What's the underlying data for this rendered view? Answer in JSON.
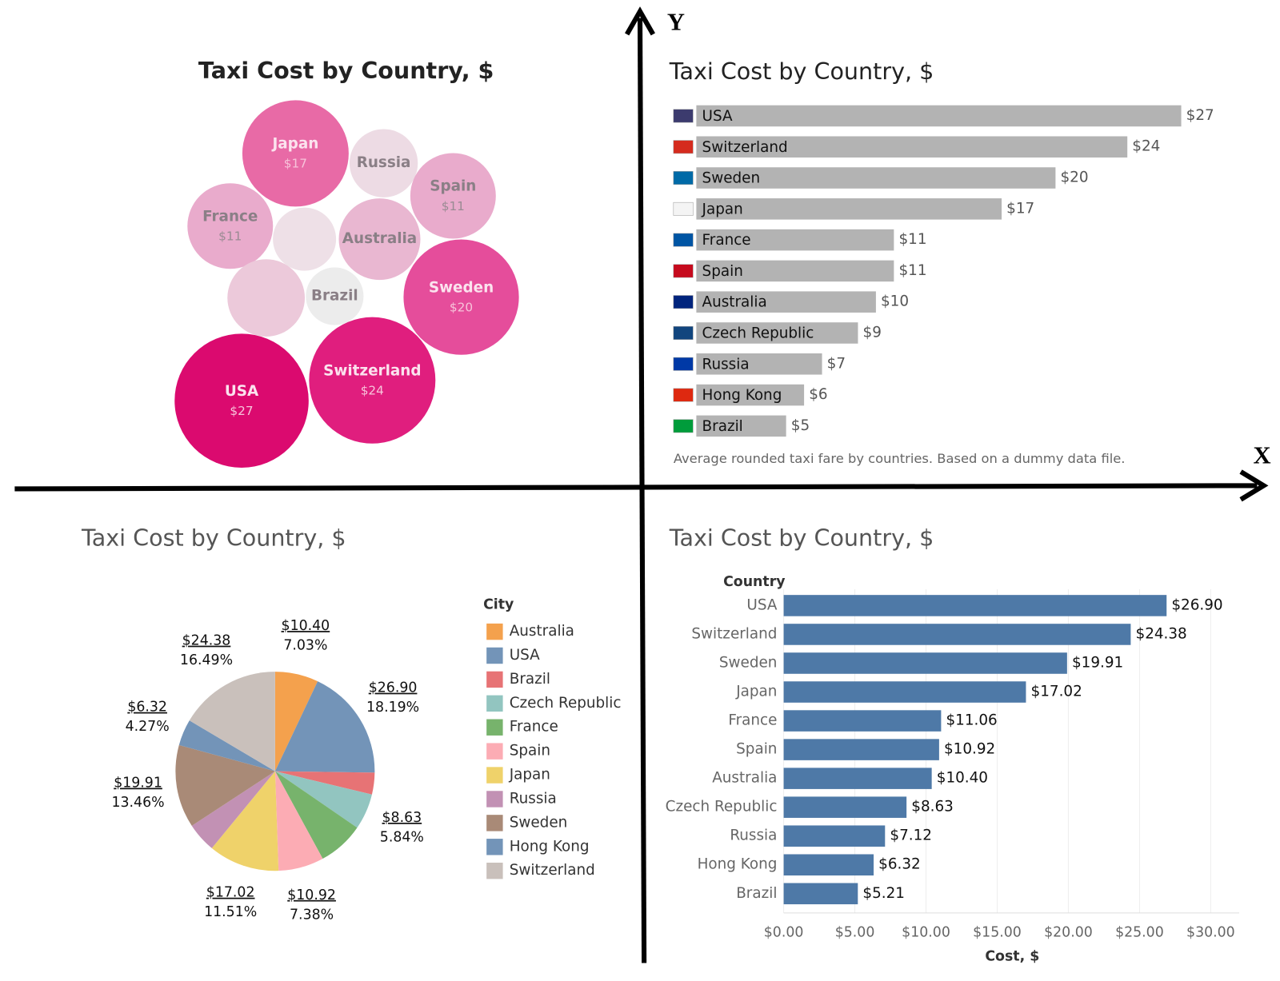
{
  "chart_data": [
    {
      "type": "bubble",
      "title": "Taxi Cost by Country, $",
      "categories": [
        "Japan",
        "Russia",
        "Spain",
        "France",
        null,
        "Australia",
        null,
        "Brazil",
        "Sweden",
        "USA",
        "Switzerland"
      ],
      "values": [
        17,
        7,
        11,
        11,
        6,
        10,
        9,
        5,
        20,
        27,
        24
      ],
      "value_labels": [
        "$17",
        null,
        "$11",
        "$11",
        null,
        null,
        null,
        null,
        "$20",
        "$27",
        "$24"
      ],
      "colors": [
        "#e86aa6",
        "#eddbe4",
        "#e9abcc",
        "#e9abcc",
        "#eee0e7",
        "#e9b7d1",
        "#ecc9da",
        "#ececec",
        "#e54d9b",
        "#db0a6f",
        "#e01e7e"
      ]
    },
    {
      "type": "bar",
      "title": "Taxi Cost by Country, $",
      "categories": [
        "USA",
        "Switzerland",
        "Sweden",
        "Japan",
        "France",
        "Spain",
        "Australia",
        "Czech Republic",
        "Russia",
        "Hong Kong",
        "Brazil"
      ],
      "values": [
        27,
        24,
        20,
        17,
        11,
        11,
        10,
        9,
        7,
        6,
        5
      ],
      "value_labels": [
        "$27",
        "$24",
        "$20",
        "$17",
        "$11",
        "$11",
        "$10",
        "$9",
        "$7",
        "$6",
        "$5"
      ],
      "color": "#b3b3b3",
      "note": "Average rounded taxi fare by countries. Based on a dummy data file."
    },
    {
      "type": "pie",
      "title": "Taxi Cost by Country, $",
      "legend_title": "City",
      "categories": [
        "Australia",
        "USA",
        "Brazil",
        "Czech Republic",
        "France",
        "Spain",
        "Japan",
        "Russia",
        "Sweden",
        "Hong Kong",
        "Switzerland"
      ],
      "values": [
        10.4,
        26.9,
        5.21,
        8.63,
        11.06,
        10.92,
        17.02,
        7.12,
        19.91,
        6.32,
        24.38
      ],
      "value_labels": [
        "$10.40",
        "$26.90",
        null,
        "$8.63",
        null,
        "$10.92",
        "$17.02",
        null,
        "$19.91",
        "$6.32",
        "$24.38"
      ],
      "percent_labels": [
        "7.03%",
        "18.19%",
        null,
        "5.84%",
        null,
        "7.38%",
        "11.51%",
        null,
        "13.46%",
        "4.27%",
        "16.49%"
      ],
      "colors": [
        "#f4a14d",
        "#7394b8",
        "#e77375",
        "#92c5c0",
        "#77b36c",
        "#fcacb4",
        "#efd26a",
        "#c291b4",
        "#a98a77",
        "#7394b8",
        "#c9c0bb"
      ]
    },
    {
      "type": "bar",
      "title": "Taxi Cost by Country, $",
      "y_label": "Country",
      "x_label": "Cost, $",
      "categories": [
        "USA",
        "Switzerland",
        "Sweden",
        "Japan",
        "France",
        "Spain",
        "Australia",
        "Czech Republic",
        "Russia",
        "Hong Kong",
        "Brazil"
      ],
      "values": [
        26.9,
        24.38,
        19.91,
        17.02,
        11.06,
        10.92,
        10.4,
        8.63,
        7.12,
        6.32,
        5.21
      ],
      "value_labels": [
        "$26.90",
        "$24.38",
        "$19.91",
        "$17.02",
        "$11.06",
        "$10.92",
        "$10.40",
        "$8.63",
        "$7.12",
        "$6.32",
        "$5.21"
      ],
      "color": "#4e79a7",
      "grid": true,
      "xlim": [
        0,
        32
      ],
      "xticks": [
        {
          "value": 0,
          "label": "$0.00"
        },
        {
          "value": 5,
          "label": "$5.00"
        },
        {
          "value": 10,
          "label": "$10.00"
        },
        {
          "value": 15,
          "label": "$15.00"
        },
        {
          "value": 20,
          "label": "$20.00"
        },
        {
          "value": 25,
          "label": "$25.00"
        },
        {
          "value": 30,
          "label": "$30.00"
        }
      ]
    }
  ],
  "quadrant_axes": {
    "x_label": "X",
    "y_label": "Y"
  }
}
